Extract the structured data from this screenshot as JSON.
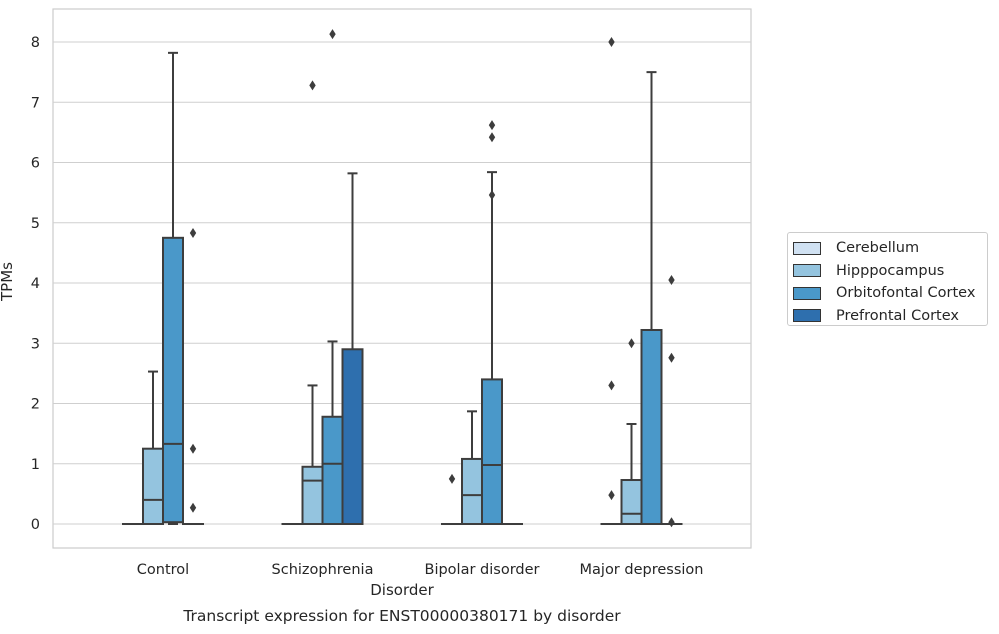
{
  "chart_data": {
    "type": "boxplot",
    "xlabel": "Disorder",
    "ylabel": "TPMs",
    "caption": "Transcript expression for ENST00000380171 by disorder",
    "ylim": [
      -0.4,
      8.55
    ],
    "yticks": [
      0,
      1,
      2,
      3,
      4,
      5,
      6,
      7,
      8
    ],
    "grid": true,
    "legend_position": "right",
    "categories": [
      "Control",
      "Schizophrenia",
      "Bipolar disorder",
      "Major depression"
    ],
    "series": [
      {
        "name": "Cerebellum",
        "color": "#d0e1f2",
        "boxes": [
          {
            "min": 0,
            "q1": 0,
            "median": 0,
            "q3": 0,
            "max": 0,
            "outliers": []
          },
          {
            "min": 0,
            "q1": 0,
            "median": 0,
            "q3": 0,
            "max": 0,
            "outliers": []
          },
          {
            "min": 0,
            "q1": 0,
            "median": 0,
            "q3": 0,
            "max": 0,
            "outliers": [
              0.75
            ]
          },
          {
            "min": 0,
            "q1": 0,
            "median": 0,
            "q3": 0,
            "max": 0,
            "outliers": [
              2.3,
              0.48,
              8.0
            ]
          }
        ]
      },
      {
        "name": "Hipppocampus",
        "color": "#94c4df",
        "boxes": [
          {
            "min": 0,
            "q1": 0,
            "median": 0.4,
            "q3": 1.25,
            "max": 2.53,
            "outliers": []
          },
          {
            "min": 0,
            "q1": 0,
            "median": 0.72,
            "q3": 0.95,
            "max": 2.3,
            "outliers": [
              7.28
            ]
          },
          {
            "min": 0,
            "q1": 0,
            "median": 0.48,
            "q3": 1.08,
            "max": 1.87,
            "outliers": []
          },
          {
            "min": 0,
            "q1": 0,
            "median": 0.17,
            "q3": 0.73,
            "max": 1.66,
            "outliers": [
              3.0
            ]
          }
        ]
      },
      {
        "name": "Orbitofontal Cortex",
        "color": "#4a98c9",
        "boxes": [
          {
            "min": 0,
            "q1": 0.03,
            "median": 1.33,
            "q3": 4.75,
            "max": 7.82,
            "outliers": []
          },
          {
            "min": 0,
            "q1": 0,
            "median": 1.0,
            "q3": 1.78,
            "max": 3.03,
            "outliers": [
              8.13
            ]
          },
          {
            "min": 0,
            "q1": 0,
            "median": 0.98,
            "q3": 2.4,
            "max": 5.84,
            "outliers": [
              6.62,
              6.42,
              5.46
            ]
          },
          {
            "min": 0,
            "q1": 0,
            "median": 0,
            "q3": 3.22,
            "max": 7.5,
            "outliers": []
          }
        ]
      },
      {
        "name": "Prefrontal Cortex",
        "color": "#2e6fae",
        "boxes": [
          {
            "min": 0,
            "q1": 0,
            "median": 0,
            "q3": 0,
            "max": 0,
            "outliers": [
              4.83,
              1.25,
              0.27
            ]
          },
          {
            "min": 0,
            "q1": 0,
            "median": 0,
            "q3": 2.9,
            "max": 5.82,
            "outliers": []
          },
          {
            "min": 0,
            "q1": 0,
            "median": 0,
            "q3": 0,
            "max": 0,
            "outliers": []
          },
          {
            "min": 0,
            "q1": 0,
            "median": 0,
            "q3": 0,
            "max": 0,
            "outliers": [
              4.05,
              2.76,
              0.03
            ]
          }
        ]
      }
    ]
  }
}
